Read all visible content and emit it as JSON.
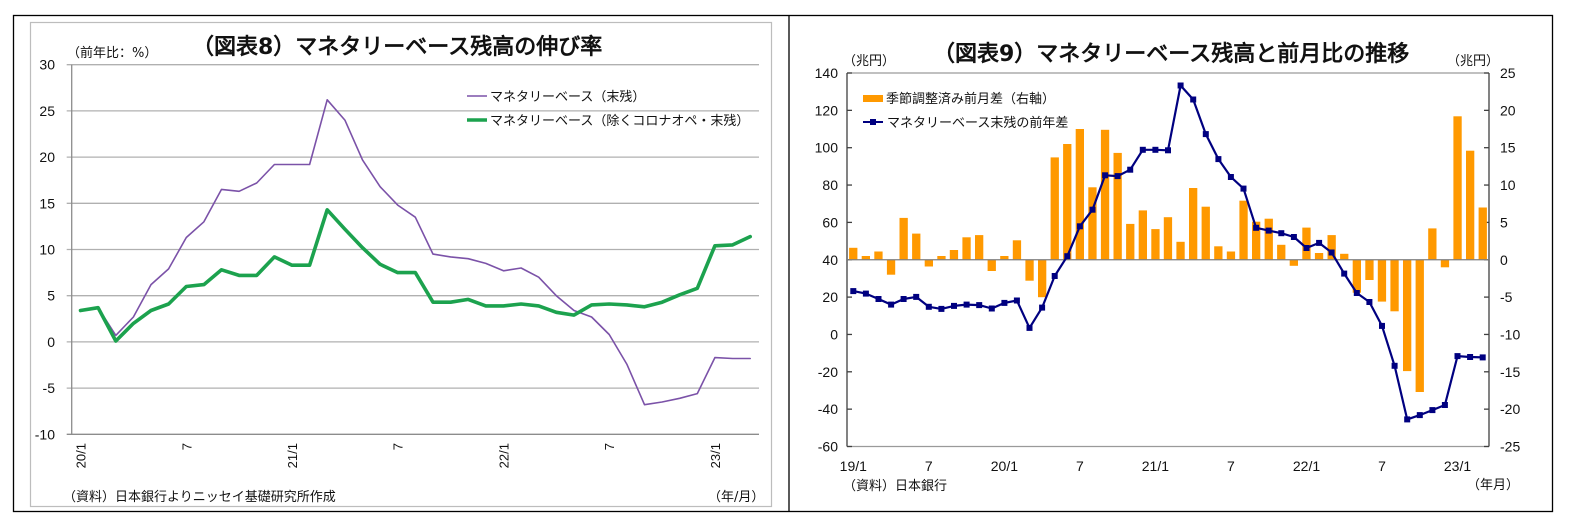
{
  "colors": {
    "negative_tick_label": "#E60012",
    "frame": "#000000"
  },
  "chart_data": [
    {
      "id": "figure-8",
      "type": "line",
      "title": "（図表8）マネタリーベース残高の伸び率",
      "ylabel": "（前年比：%）",
      "xlabel": "（年/月）",
      "source": "（資料）日本銀行よりニッセイ基礎研究所作成",
      "ylim": [
        -10,
        30
      ],
      "yticks": [
        -10,
        -5,
        0,
        5,
        10,
        15,
        20,
        25,
        30
      ],
      "grid": true,
      "legend_position": "top-right",
      "x": [
        "20/1",
        "20/2",
        "20/3",
        "20/4",
        "20/5",
        "20/6",
        "20/7",
        "20/8",
        "20/9",
        "20/10",
        "20/11",
        "20/12",
        "21/1",
        "21/2",
        "21/3",
        "21/4",
        "21/5",
        "21/6",
        "21/7",
        "21/8",
        "21/9",
        "21/10",
        "21/11",
        "21/12",
        "22/1",
        "22/2",
        "22/3",
        "22/4",
        "22/5",
        "22/6",
        "22/7",
        "22/8",
        "22/9",
        "22/10",
        "22/11",
        "22/12",
        "23/1",
        "23/2",
        "23/3"
      ],
      "xtick_labels": [
        {
          "index": 0,
          "label": "20/1"
        },
        {
          "index": 6,
          "label": "7"
        },
        {
          "index": 12,
          "label": "21/1"
        },
        {
          "index": 18,
          "label": "7"
        },
        {
          "index": 24,
          "label": "22/1"
        },
        {
          "index": 30,
          "label": "7"
        },
        {
          "index": 36,
          "label": "23/1"
        }
      ],
      "series": [
        {
          "name": "マネタリーベース（末残）",
          "color": "#7B52A8",
          "values": [
            3.4,
            3.7,
            0.7,
            2.7,
            6.2,
            7.9,
            11.3,
            13.0,
            16.5,
            16.3,
            17.2,
            19.2,
            19.2,
            19.2,
            26.2,
            24.0,
            19.7,
            16.8,
            14.8,
            13.5,
            9.5,
            9.2,
            9.0,
            8.5,
            7.7,
            8.0,
            7.0,
            5.0,
            3.4,
            2.7,
            0.8,
            -2.4,
            -6.8,
            -6.5,
            -6.1,
            -5.6,
            -1.7,
            -1.8,
            -1.8
          ]
        },
        {
          "name": "マネタリーベース（除くコロナオペ・末残）",
          "color": "#1CA24E",
          "values": [
            3.4,
            3.7,
            0.1,
            2.0,
            3.4,
            4.1,
            6.0,
            6.2,
            7.8,
            7.2,
            7.2,
            9.2,
            8.3,
            8.3,
            14.3,
            12.2,
            10.2,
            8.4,
            7.5,
            7.5,
            4.3,
            4.3,
            4.6,
            3.9,
            3.9,
            4.1,
            3.9,
            3.2,
            2.9,
            4.0,
            4.1,
            4.0,
            3.8,
            4.3,
            5.1,
            5.8,
            10.4,
            10.5,
            11.4
          ]
        }
      ]
    },
    {
      "id": "figure-9",
      "type": "bar+line",
      "title": "（図表9）マネタリーベース残高と前月比の推移",
      "ylabel_left": "（兆円）",
      "ylabel_right": "（兆円）",
      "xlabel": "（年月）",
      "source": "（資料）日本銀行",
      "ylim_left": [
        -60,
        140
      ],
      "ylim_right": [
        -25,
        25
      ],
      "yticks_left": [
        -60,
        -40,
        -20,
        0,
        20,
        40,
        60,
        80,
        100,
        120,
        140
      ],
      "yticks_right": [
        -25,
        -20,
        -15,
        -10,
        -5,
        0,
        5,
        10,
        15,
        20,
        25
      ],
      "grid": false,
      "legend_position": "top-left",
      "x": [
        "19/1",
        "19/2",
        "19/3",
        "19/4",
        "19/5",
        "19/6",
        "19/7",
        "19/8",
        "19/9",
        "19/10",
        "19/11",
        "19/12",
        "20/1",
        "20/2",
        "20/3",
        "20/4",
        "20/5",
        "20/6",
        "20/7",
        "20/8",
        "20/9",
        "20/10",
        "20/11",
        "20/12",
        "21/1",
        "21/2",
        "21/3",
        "21/4",
        "21/5",
        "21/6",
        "21/7",
        "21/8",
        "21/9",
        "21/10",
        "21/11",
        "21/12",
        "22/1",
        "22/2",
        "22/3",
        "22/4",
        "22/5",
        "22/6",
        "22/7",
        "22/8",
        "22/9",
        "22/10",
        "22/11",
        "22/12",
        "23/1",
        "23/2",
        "23/3"
      ],
      "xtick_labels": [
        {
          "index": 0,
          "label": "19/1"
        },
        {
          "index": 6,
          "label": "7"
        },
        {
          "index": 12,
          "label": "20/1"
        },
        {
          "index": 18,
          "label": "7"
        },
        {
          "index": 24,
          "label": "21/1"
        },
        {
          "index": 30,
          "label": "7"
        },
        {
          "index": 36,
          "label": "22/1"
        },
        {
          "index": 42,
          "label": "7"
        },
        {
          "index": 48,
          "label": "23/1"
        }
      ],
      "series": [
        {
          "name": "季節調整済み前月差（右軸）",
          "type": "bar",
          "axis": "right",
          "color": "#FF9900",
          "values": [
            1.6,
            0.5,
            1.1,
            -2.0,
            5.6,
            3.5,
            -0.9,
            0.5,
            1.3,
            3.0,
            3.3,
            -1.5,
            0.5,
            2.6,
            -2.8,
            -5.0,
            13.7,
            15.5,
            17.5,
            9.7,
            17.4,
            14.3,
            4.8,
            6.6,
            4.1,
            5.7,
            2.4,
            9.6,
            7.1,
            1.8,
            1.1,
            7.9,
            5.1,
            5.5,
            2.0,
            -0.8,
            4.3,
            0.9,
            3.3,
            0.8,
            -4.4,
            -2.7,
            -5.6,
            -6.9,
            -14.9,
            -17.7,
            4.2,
            -1.0,
            19.2,
            14.6,
            7.0
          ]
        },
        {
          "name": "マネタリーベース末残の前年差",
          "type": "line",
          "axis": "left",
          "marker": "square",
          "color": "#000080",
          "values": [
            23.2,
            21.9,
            19.0,
            16.0,
            19.0,
            20.1,
            14.8,
            13.7,
            15.3,
            16.0,
            15.7,
            13.9,
            16.9,
            18.2,
            3.5,
            14.4,
            31.3,
            41.9,
            57.9,
            66.8,
            85.2,
            84.8,
            88.2,
            98.9,
            98.9,
            98.6,
            133.3,
            125.8,
            107.3,
            93.9,
            84.3,
            78.1,
            57.1,
            55.6,
            54.2,
            52.2,
            46.3,
            49.0,
            43.9,
            32.6,
            22.2,
            17.4,
            4.6,
            -16.8,
            -45.5,
            -43.2,
            -40.5,
            -37.8,
            -11.6,
            -12.1,
            -12.3
          ]
        }
      ]
    }
  ]
}
